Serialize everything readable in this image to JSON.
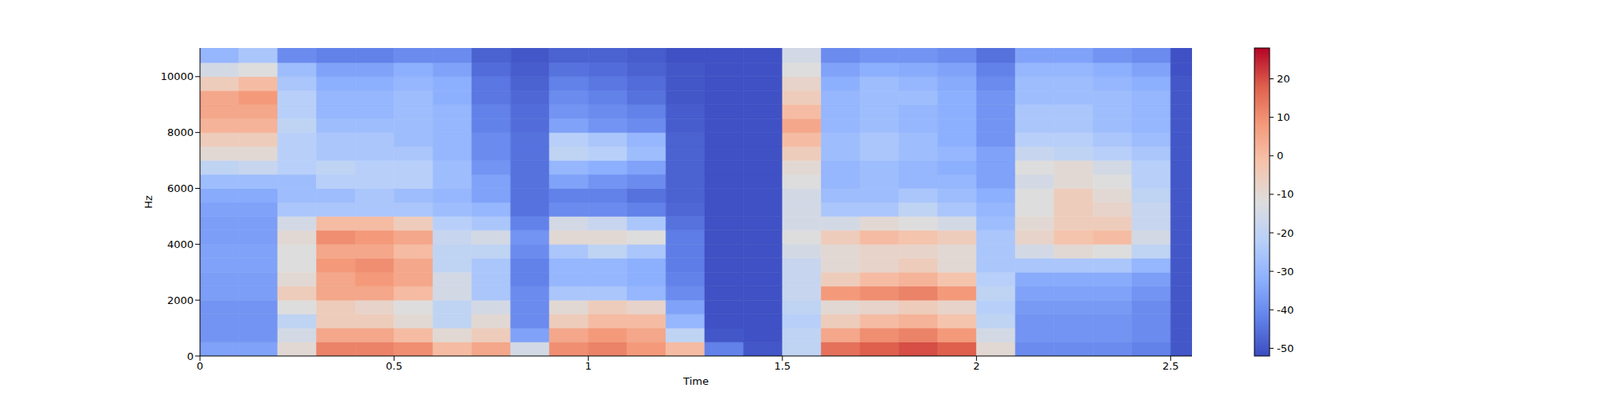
{
  "chart_data": {
    "type": "heatmap",
    "x_label": "Time",
    "y_label": "Hz",
    "xlim": [
      0,
      2.555
    ],
    "xticks": [
      0,
      0.5,
      1,
      1.5,
      2,
      2.5
    ],
    "ylim": [
      0,
      11025
    ],
    "yticks": [
      0,
      2000,
      4000,
      6000,
      8000,
      10000
    ],
    "x_edges": [
      0,
      0.1,
      0.2,
      0.3,
      0.4,
      0.5,
      0.6,
      0.7,
      0.8,
      0.9,
      1.0,
      1.1,
      1.2,
      1.3,
      1.4,
      1.5,
      1.6,
      1.7,
      1.8,
      1.9,
      2.0,
      2.1,
      2.2,
      2.3,
      2.4,
      2.5,
      2.555
    ],
    "y_edges": [
      0,
      500,
      1000,
      1500,
      2000,
      2500,
      3000,
      3500,
      4000,
      4500,
      5000,
      5500,
      6000,
      6500,
      7000,
      7500,
      8000,
      8500,
      9000,
      9500,
      10000,
      10500,
      11025
    ],
    "values": [
      [
        -35,
        -35,
        -10,
        12,
        12,
        10,
        0,
        5,
        -15,
        10,
        12,
        8,
        0,
        -42,
        -50,
        -20,
        15,
        18,
        20,
        18,
        -10,
        -40,
        -40,
        -40,
        -42,
        -50
      ],
      [
        -38,
        -38,
        -15,
        5,
        5,
        0,
        -10,
        -5,
        -35,
        5,
        8,
        5,
        -20,
        -50,
        -51,
        -20,
        5,
        10,
        12,
        8,
        -15,
        -38,
        -38,
        -38,
        -40,
        -50
      ],
      [
        -38,
        -38,
        -20,
        -5,
        -5,
        -10,
        -20,
        -10,
        -40,
        -5,
        0,
        0,
        -30,
        -51,
        -51,
        -22,
        -5,
        0,
        2,
        -2,
        -20,
        -38,
        -38,
        -38,
        -40,
        -50
      ],
      [
        -38,
        -38,
        -12,
        -5,
        -8,
        -12,
        -20,
        -15,
        -40,
        -10,
        -5,
        -8,
        -35,
        -51,
        -51,
        -20,
        -10,
        -8,
        -5,
        -8,
        -22,
        -37,
        -37,
        -37,
        -40,
        -50
      ],
      [
        -36,
        -36,
        -5,
        5,
        5,
        0,
        -15,
        -25,
        -40,
        -25,
        -25,
        -30,
        -40,
        -51,
        -51,
        -18,
        8,
        10,
        12,
        8,
        -20,
        -35,
        -35,
        -35,
        -38,
        -50
      ],
      [
        -36,
        -36,
        -10,
        5,
        8,
        5,
        -15,
        -25,
        -42,
        -30,
        -30,
        -32,
        -42,
        -51,
        -51,
        -18,
        -5,
        0,
        2,
        -2,
        -22,
        -33,
        -33,
        -33,
        -36,
        -50
      ],
      [
        -35,
        -35,
        -12,
        8,
        10,
        5,
        -20,
        -25,
        -42,
        -30,
        -30,
        -32,
        -43,
        -51,
        -51,
        -18,
        -10,
        -8,
        -5,
        -10,
        -25,
        -25,
        -25,
        -25,
        -30,
        -50
      ],
      [
        -35,
        -35,
        -12,
        5,
        5,
        0,
        -20,
        -20,
        -40,
        -25,
        -20,
        -25,
        -43,
        -51,
        -51,
        -15,
        -10,
        -8,
        -8,
        -10,
        -25,
        -15,
        -10,
        -12,
        -20,
        -50
      ],
      [
        -36,
        -36,
        -10,
        10,
        8,
        5,
        -18,
        -15,
        -38,
        -10,
        -10,
        -12,
        -43,
        -51,
        -51,
        -12,
        -5,
        0,
        -2,
        -5,
        -25,
        -8,
        -2,
        0,
        -15,
        -50
      ],
      [
        -36,
        -36,
        -15,
        0,
        0,
        -5,
        -22,
        -25,
        -42,
        -15,
        -18,
        -25,
        -45,
        -51,
        -51,
        -15,
        -15,
        -10,
        -12,
        -15,
        -28,
        -10,
        -5,
        -5,
        -18,
        -50
      ],
      [
        -35,
        -35,
        -25,
        -25,
        -25,
        -25,
        -28,
        -30,
        -45,
        -40,
        -40,
        -42,
        -47,
        -51,
        -51,
        -15,
        -25,
        -25,
        -20,
        -25,
        -30,
        -12,
        -5,
        -8,
        -18,
        -50
      ],
      [
        -33,
        -33,
        -28,
        -28,
        -25,
        -28,
        -30,
        -35,
        -45,
        -42,
        -42,
        -45,
        -48,
        -51,
        -51,
        -15,
        -28,
        -28,
        -25,
        -28,
        -32,
        -12,
        -5,
        -10,
        -20,
        -50
      ],
      [
        -28,
        -28,
        -28,
        -22,
        -22,
        -22,
        -28,
        -35,
        -45,
        -35,
        -38,
        -40,
        -48,
        -51,
        -51,
        -12,
        -30,
        -28,
        -30,
        -30,
        -35,
        -15,
        -10,
        -12,
        -22,
        -50
      ],
      [
        -20,
        -18,
        -22,
        -20,
        -22,
        -22,
        -28,
        -38,
        -45,
        -30,
        -32,
        -35,
        -48,
        -51,
        -51,
        -10,
        -30,
        -28,
        -30,
        -32,
        -35,
        -12,
        -10,
        -15,
        -22,
        -50
      ],
      [
        -10,
        -10,
        -22,
        -25,
        -25,
        -25,
        -30,
        -40,
        -45,
        -20,
        -22,
        -28,
        -48,
        -51,
        -51,
        -5,
        -28,
        -25,
        -28,
        -30,
        -35,
        -18,
        -20,
        -22,
        -25,
        -50
      ],
      [
        -5,
        -5,
        -22,
        -25,
        -25,
        -28,
        -30,
        -40,
        -45,
        -22,
        -25,
        -30,
        -48,
        -51,
        -51,
        0,
        -28,
        -25,
        -28,
        -32,
        -38,
        -22,
        -22,
        -25,
        -28,
        -50
      ],
      [
        2,
        2,
        -20,
        -28,
        -28,
        -28,
        -30,
        -42,
        -46,
        -35,
        -38,
        -40,
        -49,
        -51,
        -51,
        5,
        -30,
        -28,
        -30,
        -32,
        -38,
        -25,
        -25,
        -28,
        -30,
        -50
      ],
      [
        5,
        5,
        -22,
        -30,
        -30,
        -28,
        -30,
        -42,
        -46,
        -38,
        -40,
        -42,
        -49,
        -51,
        -51,
        0,
        -30,
        -28,
        -30,
        -32,
        -38,
        -25,
        -25,
        -28,
        -30,
        -50
      ],
      [
        5,
        8,
        -22,
        -30,
        -30,
        -28,
        -32,
        -44,
        -47,
        -40,
        -42,
        -45,
        -50,
        -51,
        -51,
        -5,
        -30,
        -28,
        -28,
        -32,
        -38,
        -28,
        -28,
        -28,
        -30,
        -50
      ],
      [
        -5,
        0,
        -25,
        -32,
        -32,
        -30,
        -32,
        -44,
        -48,
        -42,
        -44,
        -46,
        -50,
        -51,
        -51,
        -8,
        -32,
        -28,
        -30,
        -33,
        -40,
        -28,
        -28,
        -30,
        -32,
        -50
      ],
      [
        -15,
        -12,
        -28,
        -35,
        -35,
        -32,
        -35,
        -46,
        -49,
        -45,
        -46,
        -48,
        -50,
        -51,
        -51,
        -12,
        -35,
        -32,
        -33,
        -35,
        -42,
        -30,
        -30,
        -32,
        -35,
        -51
      ],
      [
        -30,
        -25,
        -40,
        -42,
        -42,
        -40,
        -40,
        -48,
        -50,
        -48,
        -48,
        -49,
        -51,
        -51,
        -51,
        -15,
        -40,
        -38,
        -38,
        -40,
        -45,
        -35,
        -35,
        -38,
        -40,
        -51
      ]
    ],
    "colorbar": {
      "range": [
        -52,
        28
      ],
      "ticks": [
        -50,
        -40,
        -30,
        -20,
        -10,
        0,
        10,
        20
      ]
    }
  }
}
